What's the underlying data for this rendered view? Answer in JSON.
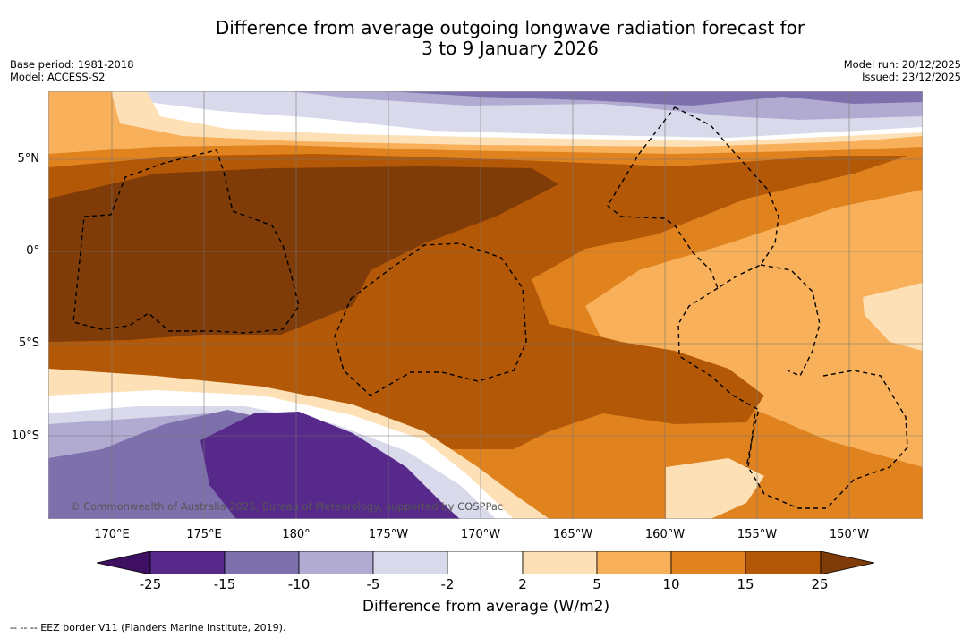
{
  "title": {
    "line1": "Difference from average outgoing longwave radiation forecast for",
    "line2": "3 to 9 January 2026"
  },
  "meta": {
    "base_period": "Base period: 1981-2018",
    "model": "Model: ACCESS-S2",
    "model_run": "Model run: 20/12/2025",
    "issued": "Issued: 23/12/2025"
  },
  "lat_labels": [
    "5°N",
    "0°",
    "5°S",
    "10°S"
  ],
  "lon_labels": [
    "170°E",
    "175°E",
    "180°",
    "175°W",
    "170°W",
    "165°W",
    "160°W",
    "155°W",
    "150°W"
  ],
  "copyright": "© Commonwealth of Australia 2025, Bureau of Meteorology, supported by COSPPac",
  "colorbar": {
    "ticks": [
      "-25",
      "-15",
      "-10",
      "-5",
      "-2",
      "2",
      "5",
      "10",
      "15",
      "25"
    ],
    "title": "Difference from average (W/m2)",
    "colors": [
      "#3f0f61",
      "#56298a",
      "#7e70ad",
      "#b1abd2",
      "#d9d9ec",
      "#ffffff",
      "#fde0b6",
      "#f8b05a",
      "#e0821e",
      "#b35806",
      "#7f3b08"
    ]
  },
  "legend_text": "--  --  -- EEZ border V11 (Flanders Marine Institute, 2019)."
}
